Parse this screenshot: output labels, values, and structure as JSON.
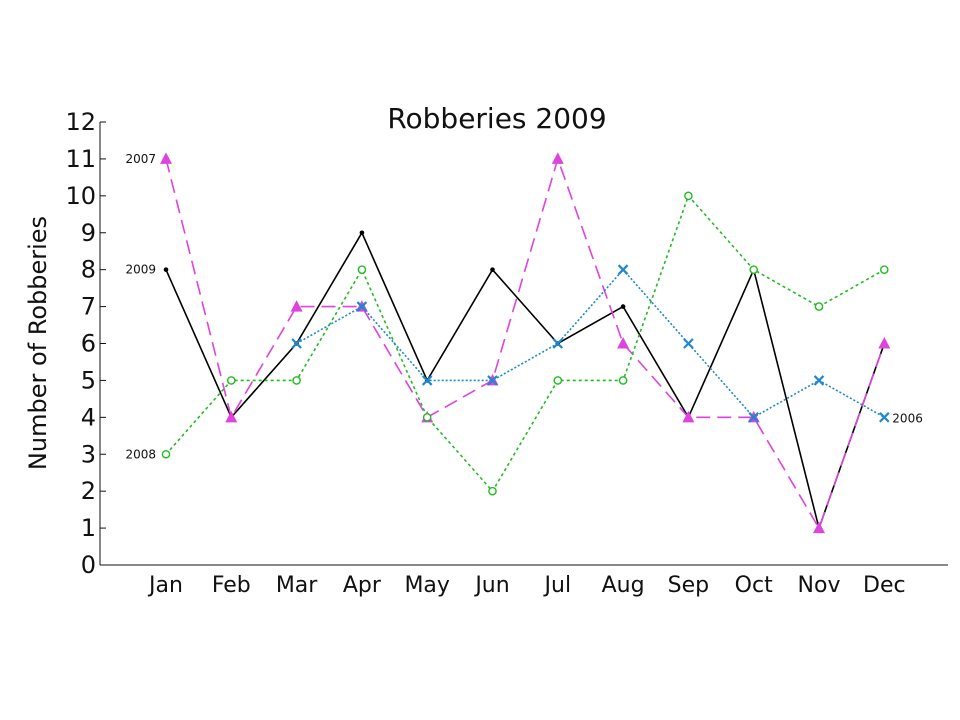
{
  "chart_data": {
    "type": "line",
    "title": "Robberies 2009",
    "xlabel": "",
    "ylabel": "Number of Robberies",
    "categories": [
      "Jan",
      "Feb",
      "Mar",
      "Apr",
      "May",
      "Jun",
      "Jul",
      "Aug",
      "Sep",
      "Oct",
      "Nov",
      "Dec"
    ],
    "ylim": [
      0,
      12
    ],
    "yticks": [
      "0",
      "1",
      "2",
      "3",
      "4",
      "5",
      "6",
      "7",
      "8",
      "9",
      "10",
      "11",
      "12"
    ],
    "grid": false,
    "legend": "inline labels at line ends",
    "series": [
      {
        "name": "2009",
        "color": "#000000",
        "dash": "solid",
        "marker": "dot",
        "values": [
          8,
          4,
          6,
          9,
          5,
          8,
          6,
          7,
          4,
          8,
          1,
          6
        ],
        "label_side": "start"
      },
      {
        "name": "2007",
        "color": "#dd44dd",
        "dash": "dashed",
        "marker": "triangle",
        "values": [
          11,
          4,
          7,
          7,
          4,
          5,
          11,
          6,
          4,
          4,
          1,
          6
        ],
        "label_side": "start"
      },
      {
        "name": "2008",
        "color": "#22bb22",
        "dash": "dotted",
        "marker": "circle",
        "values": [
          3,
          5,
          5,
          8,
          4,
          2,
          5,
          5,
          10,
          8,
          7,
          8
        ],
        "label_side": "start"
      },
      {
        "name": "2006",
        "color": "#1f88cc",
        "dash": "fine-dotted",
        "marker": "x",
        "values": [
          null,
          null,
          6,
          7,
          5,
          5,
          6,
          8,
          6,
          4,
          5,
          4
        ],
        "label_side": "end"
      }
    ]
  }
}
